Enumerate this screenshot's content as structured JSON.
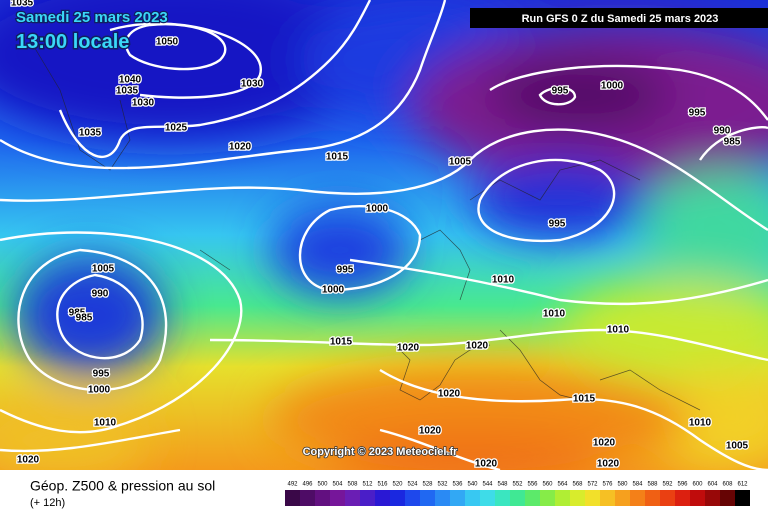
{
  "header": {
    "date": "Samedi 25 mars 2023",
    "time": "13:00 locale",
    "run": "Run GFS 0 Z du Samedi 25 mars 2023"
  },
  "copyright": "Copyright © 2023 Meteociel.fr",
  "footer": {
    "title": "Géop. Z500 & pression au sol",
    "step": "(+ 12h)"
  },
  "isobar_labels": [
    "1035",
    "1050",
    "1040",
    "1035",
    "1030",
    "1030",
    "1025",
    "1035",
    "1020",
    "1015",
    "1005",
    "1000",
    "995",
    "995",
    "1000",
    "1005",
    "990",
    "985",
    "985",
    "1015",
    "1020",
    "1020",
    "1010",
    "1010",
    "1010",
    "995",
    "1000",
    "1010",
    "1020",
    "1015",
    "1020",
    "1020",
    "1020",
    "1020",
    "1020",
    "1010",
    "1005",
    "995",
    "1000",
    "995",
    "990",
    "985"
  ],
  "legend": {
    "values": [
      492,
      496,
      500,
      504,
      508,
      512,
      516,
      520,
      524,
      528,
      532,
      536,
      540,
      544,
      548,
      552,
      556,
      560,
      564,
      568,
      572,
      576,
      580,
      584,
      588,
      592,
      596,
      600,
      604,
      608,
      612
    ],
    "colors": [
      "#3a0848",
      "#4e0c66",
      "#621080",
      "#76169a",
      "#6a1eb4",
      "#4a1ec8",
      "#2a18d4",
      "#1a28e0",
      "#1e48ec",
      "#2068f2",
      "#2a8af4",
      "#32a8f4",
      "#38c8f2",
      "#3edce8",
      "#3ae6c0",
      "#40e894",
      "#5cea6a",
      "#86ec48",
      "#b0ee34",
      "#d8ec2c",
      "#f2e02a",
      "#f6c024",
      "#f6a01e",
      "#f48018",
      "#f06014",
      "#ea4012",
      "#dc2010",
      "#c00c0c",
      "#980808",
      "#660404",
      "#000000"
    ]
  }
}
